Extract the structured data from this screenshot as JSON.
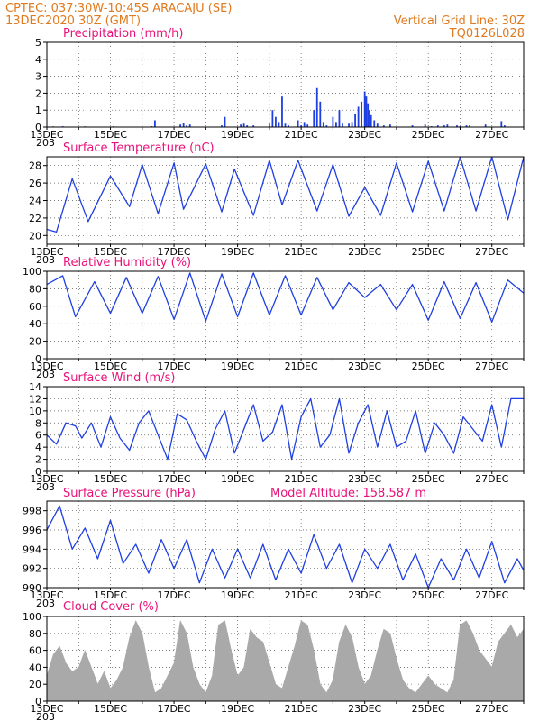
{
  "header": {
    "line1": "CPTEC:   037:30W-10:45S   ARACAJU (SE)",
    "line2": "13DEC2020 30Z (GMT)",
    "grid_note": "Vertical Grid Line: 30Z",
    "code": "TQ0126L028"
  },
  "colors": {
    "header": "#e07a1f",
    "title": "#e8127a",
    "line": "#1f3fe0",
    "bar": "#1f3fe0",
    "cloud": "#a9a9a9",
    "arrow": "#000000"
  },
  "x_ticks": [
    "13DEC",
    "15DEC",
    "17DEC",
    "19DEC",
    "21DEC",
    "23DEC",
    "25DEC",
    "27DEC"
  ],
  "x_tick_sub": "203",
  "chart_data": [
    {
      "id": "precip",
      "type": "bar",
      "title": "Precipitation  (mm/h)",
      "ylim": [
        0,
        5
      ],
      "yticks": [
        "0",
        "1",
        "2",
        "3",
        "4",
        "5"
      ],
      "ytick_values": [
        0,
        1,
        2,
        3,
        4,
        5
      ],
      "xlim": [
        0,
        15
      ],
      "events": [
        [
          0.2,
          0.04
        ],
        [
          0.5,
          0.05
        ],
        [
          1.2,
          0.04
        ],
        [
          2.1,
          0.05
        ],
        [
          3.3,
          0.05
        ],
        [
          3.4,
          0.4
        ],
        [
          4.2,
          0.15
        ],
        [
          4.3,
          0.25
        ],
        [
          4.4,
          0.1
        ],
        [
          4.5,
          0.15
        ],
        [
          5.5,
          0.1
        ],
        [
          5.6,
          0.6
        ],
        [
          6.1,
          0.15
        ],
        [
          6.2,
          0.2
        ],
        [
          6.3,
          0.1
        ],
        [
          6.5,
          0.1
        ],
        [
          7.0,
          0.2
        ],
        [
          7.1,
          1.0
        ],
        [
          7.2,
          0.6
        ],
        [
          7.3,
          0.3
        ],
        [
          7.4,
          1.8
        ],
        [
          7.5,
          0.2
        ],
        [
          7.6,
          0.1
        ],
        [
          7.9,
          0.4
        ],
        [
          8.0,
          0.1
        ],
        [
          8.1,
          0.3
        ],
        [
          8.2,
          0.15
        ],
        [
          8.4,
          1.0
        ],
        [
          8.5,
          2.3
        ],
        [
          8.6,
          1.5
        ],
        [
          8.7,
          0.3
        ],
        [
          8.8,
          0.1
        ],
        [
          9.0,
          0.6
        ],
        [
          9.1,
          0.3
        ],
        [
          9.2,
          1.0
        ],
        [
          9.3,
          0.2
        ],
        [
          9.5,
          0.2
        ],
        [
          9.6,
          0.3
        ],
        [
          9.7,
          0.8
        ],
        [
          9.8,
          1.2
        ],
        [
          9.9,
          1.5
        ],
        [
          10.0,
          2.1
        ],
        [
          10.05,
          1.8
        ],
        [
          10.1,
          1.4
        ],
        [
          10.15,
          1.0
        ],
        [
          10.2,
          0.7
        ],
        [
          10.3,
          0.4
        ],
        [
          10.4,
          0.2
        ],
        [
          10.6,
          0.1
        ],
        [
          10.8,
          0.15
        ],
        [
          11.5,
          0.1
        ],
        [
          11.9,
          0.15
        ],
        [
          12.1,
          0.05
        ],
        [
          12.3,
          0.1
        ],
        [
          12.5,
          0.1
        ],
        [
          12.6,
          0.15
        ],
        [
          12.9,
          0.1
        ],
        [
          13.0,
          0.05
        ],
        [
          13.2,
          0.1
        ],
        [
          13.3,
          0.1
        ],
        [
          13.8,
          0.15
        ],
        [
          14.3,
          0.35
        ],
        [
          14.4,
          0.1
        ],
        [
          15.2,
          0.05
        ]
      ]
    },
    {
      "id": "temp",
      "type": "line",
      "title": "Surface Temperature (nC)",
      "ylim": [
        19,
        29
      ],
      "yticks": [
        "20",
        "22",
        "24",
        "26",
        "28"
      ],
      "ytick_values": [
        20,
        22,
        24,
        26,
        28
      ],
      "xlim": [
        0,
        15
      ],
      "x": [
        0.0,
        0.3,
        0.8,
        1.3,
        2.0,
        2.6,
        3.0,
        3.5,
        4.0,
        4.3,
        5.0,
        5.5,
        5.9,
        6.5,
        7.0,
        7.4,
        7.9,
        8.5,
        9.0,
        9.5,
        10.0,
        10.5,
        11.0,
        11.5,
        12.0,
        12.5,
        13.0,
        13.5,
        14.0,
        14.5,
        15.0
      ],
      "y": [
        20.7,
        20.4,
        26.5,
        21.6,
        26.8,
        23.3,
        28.1,
        22.5,
        28.3,
        23.0,
        28.2,
        22.7,
        27.6,
        22.3,
        28.6,
        23.5,
        28.6,
        22.8,
        28.1,
        22.2,
        25.5,
        22.3,
        28.3,
        22.7,
        28.5,
        22.8,
        29.0,
        22.8,
        29.0,
        21.8,
        29.0
      ]
    },
    {
      "id": "rh",
      "type": "line",
      "title": "Relative Humidity (%)",
      "ylim": [
        0,
        100
      ],
      "yticks": [
        "0",
        "20",
        "40",
        "60",
        "80",
        "100"
      ],
      "ytick_values": [
        0,
        20,
        40,
        60,
        80,
        100
      ],
      "xlim": [
        0,
        15
      ],
      "x": [
        0.0,
        0.5,
        0.9,
        1.5,
        2.0,
        2.5,
        3.0,
        3.5,
        4.0,
        4.5,
        5.0,
        5.5,
        6.0,
        6.5,
        7.0,
        7.5,
        8.0,
        8.5,
        9.0,
        9.5,
        10.0,
        10.5,
        11.0,
        11.5,
        12.0,
        12.5,
        13.0,
        13.5,
        14.0,
        14.5,
        15.0
      ],
      "y": [
        85,
        95,
        48,
        88,
        52,
        93,
        52,
        94,
        45,
        98,
        43,
        97,
        48,
        98,
        50,
        95,
        50,
        93,
        56,
        87,
        70,
        85,
        56,
        85,
        44,
        88,
        46,
        87,
        42,
        90,
        75
      ]
    },
    {
      "id": "wind",
      "type": "line",
      "title": "Surface Wind (m/s)",
      "ylim": [
        0,
        14
      ],
      "yticks": [
        "0",
        "2",
        "4",
        "6",
        "8",
        "10",
        "12",
        "14"
      ],
      "ytick_values": [
        0,
        2,
        4,
        6,
        8,
        10,
        12,
        14
      ],
      "xlim": [
        0,
        15
      ],
      "x": [
        0.0,
        0.3,
        0.6,
        0.9,
        1.1,
        1.4,
        1.7,
        2.0,
        2.3,
        2.6,
        2.9,
        3.2,
        3.5,
        3.8,
        4.1,
        4.4,
        4.7,
        5.0,
        5.3,
        5.6,
        5.9,
        6.2,
        6.5,
        6.8,
        7.1,
        7.4,
        7.7,
        8.0,
        8.3,
        8.6,
        8.9,
        9.2,
        9.5,
        9.8,
        10.1,
        10.4,
        10.7,
        11.0,
        11.3,
        11.6,
        11.9,
        12.2,
        12.5,
        12.8,
        13.1,
        13.4,
        13.7,
        14.0,
        14.3,
        14.6,
        15.0
      ],
      "y": [
        6,
        4.5,
        8,
        7.5,
        5.5,
        8,
        4,
        9,
        5.5,
        3.5,
        8,
        10,
        6,
        2,
        9.5,
        8.5,
        5,
        2,
        7,
        10,
        3,
        7,
        11,
        5,
        6.5,
        11,
        2,
        9,
        12,
        4,
        6,
        12,
        3,
        8,
        11,
        4,
        10,
        4,
        5,
        10,
        3,
        8,
        6,
        3,
        9,
        7,
        5,
        11,
        4,
        12,
        12
      ]
    },
    {
      "id": "pressure",
      "type": "line",
      "title": "Surface Pressure (hPa)",
      "annotation": "Model Altitude: 158.587 m",
      "ylim": [
        990,
        999
      ],
      "yticks": [
        "990",
        "992",
        "994",
        "996",
        "998"
      ],
      "ytick_values": [
        990,
        992,
        994,
        996,
        998
      ],
      "xlim": [
        0,
        15
      ],
      "x": [
        0.0,
        0.4,
        0.8,
        1.2,
        1.6,
        2.0,
        2.4,
        2.8,
        3.2,
        3.6,
        4.0,
        4.4,
        4.8,
        5.2,
        5.6,
        6.0,
        6.4,
        6.8,
        7.2,
        7.6,
        8.0,
        8.4,
        8.8,
        9.2,
        9.6,
        10.0,
        10.4,
        10.8,
        11.2,
        11.6,
        12.0,
        12.4,
        12.8,
        13.2,
        13.6,
        14.0,
        14.4,
        14.8,
        15.0
      ],
      "y": [
        996,
        998.5,
        994,
        996.2,
        993,
        997,
        992.5,
        994.5,
        991.5,
        995,
        992,
        995,
        990.5,
        994,
        991,
        994,
        991,
        994.5,
        990.8,
        994,
        991.5,
        995.5,
        992,
        994.5,
        990.5,
        994,
        992,
        994.5,
        990.8,
        993.5,
        990,
        993,
        990.8,
        994,
        991,
        994.8,
        990.5,
        993,
        991.8
      ]
    },
    {
      "id": "cloud",
      "type": "area",
      "title": "Cloud Cover (%)",
      "ylim": [
        0,
        100
      ],
      "yticks": [
        "0",
        "20",
        "40",
        "60",
        "80",
        "100"
      ],
      "ytick_values": [
        0,
        20,
        40,
        60,
        80,
        100
      ],
      "xlim": [
        0,
        15
      ],
      "x": [
        0.0,
        0.2,
        0.4,
        0.6,
        0.8,
        1.0,
        1.2,
        1.4,
        1.6,
        1.8,
        2.0,
        2.2,
        2.4,
        2.6,
        2.8,
        3.0,
        3.2,
        3.4,
        3.6,
        3.8,
        4.0,
        4.2,
        4.4,
        4.6,
        4.8,
        5.0,
        5.2,
        5.4,
        5.6,
        5.8,
        6.0,
        6.2,
        6.4,
        6.6,
        6.8,
        7.0,
        7.2,
        7.4,
        7.6,
        7.8,
        8.0,
        8.2,
        8.4,
        8.6,
        8.8,
        9.0,
        9.2,
        9.4,
        9.6,
        9.8,
        10.0,
        10.2,
        10.4,
        10.6,
        10.8,
        11.0,
        11.2,
        11.4,
        11.6,
        11.8,
        12.0,
        12.2,
        12.4,
        12.6,
        12.8,
        13.0,
        13.2,
        13.4,
        13.6,
        13.8,
        14.0,
        14.2,
        14.4,
        14.6,
        14.8,
        15.0
      ],
      "y": [
        30,
        55,
        65,
        45,
        35,
        40,
        60,
        40,
        20,
        35,
        15,
        25,
        40,
        75,
        95,
        80,
        40,
        10,
        15,
        30,
        45,
        95,
        80,
        40,
        20,
        10,
        30,
        90,
        95,
        60,
        30,
        40,
        85,
        75,
        70,
        45,
        20,
        15,
        40,
        65,
        95,
        90,
        60,
        20,
        10,
        25,
        70,
        90,
        75,
        40,
        20,
        30,
        60,
        85,
        80,
        50,
        25,
        15,
        10,
        20,
        30,
        20,
        15,
        10,
        25,
        90,
        95,
        80,
        60,
        50,
        40,
        70,
        80,
        90,
        75,
        85
      ]
    }
  ]
}
